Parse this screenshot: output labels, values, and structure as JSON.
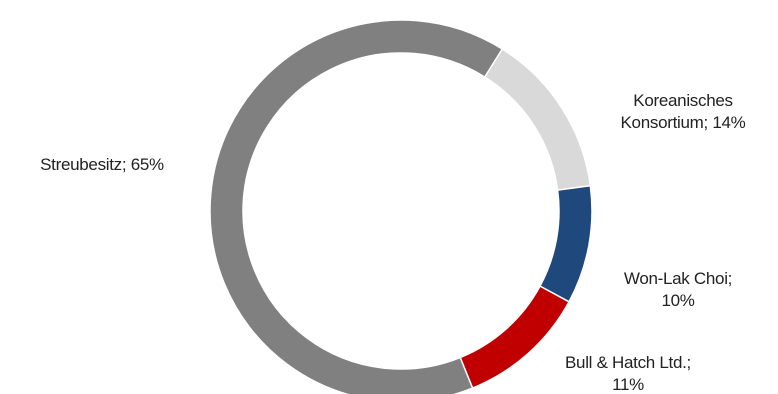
{
  "chart_data": {
    "type": "pie",
    "variant": "donut",
    "slices": [
      {
        "label": "Koreanisches Konsortium",
        "value": 14,
        "display": [
          "Koreanisches",
          "Konsortium; 14%"
        ],
        "color": "#d9d9d9"
      },
      {
        "label": "Won-Lak Choi",
        "value": 10,
        "display": [
          "Won-Lak Choi;",
          "10%"
        ],
        "color": "#1f497d"
      },
      {
        "label": "Bull & Hatch Ltd.",
        "value": 11,
        "display": [
          "Bull & Hatch Ltd.;",
          "11%"
        ],
        "color": "#c00000"
      },
      {
        "label": "Streubesitz",
        "value": 65,
        "display": [
          "Streubesitz; 65%"
        ],
        "color": "#808080"
      }
    ],
    "legend": "none",
    "data_labels": "outside"
  }
}
